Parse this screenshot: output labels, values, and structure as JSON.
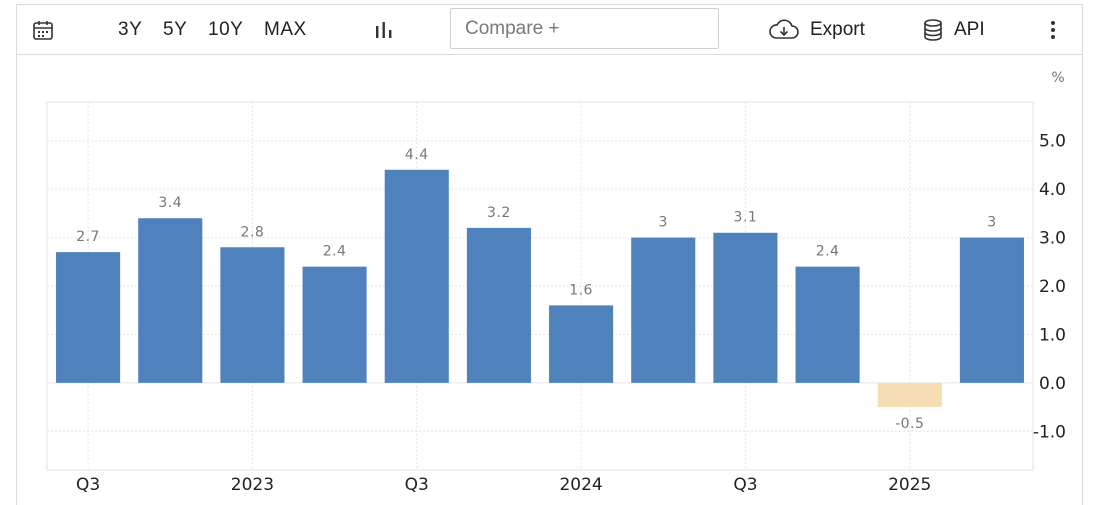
{
  "toolbar": {
    "icons": {
      "calendar": "calendar-icon",
      "chart_type": "bar-chart-icon",
      "export": "cloud-download-icon",
      "api": "database-icon",
      "more": "more-vertical-icon"
    },
    "ranges": [
      "3Y",
      "5Y",
      "10Y",
      "MAX"
    ],
    "compare_placeholder": "Compare +",
    "export_label": "Export",
    "api_label": "API"
  },
  "chart_data": {
    "type": "bar",
    "categories": [
      "2022 Q3",
      "2022 Q4",
      "2023 Q1",
      "2023 Q2",
      "2023 Q3",
      "2023 Q4",
      "2024 Q1",
      "2024 Q2",
      "2024 Q3",
      "2024 Q4",
      "2025 Q1",
      "2025 Q2"
    ],
    "values": [
      2.7,
      3.4,
      2.8,
      2.4,
      4.4,
      3.2,
      1.6,
      3,
      3.1,
      2.4,
      -0.5,
      3
    ],
    "value_labels": [
      "2.7",
      "3.4",
      "2.8",
      "2.4",
      "4.4",
      "3.2",
      "1.6",
      "3",
      "3.1",
      "2.4",
      "-0.5",
      "3"
    ],
    "x_tick_labels": [
      "Q3",
      "2023",
      "Q3",
      "2024",
      "Q3",
      "2025"
    ],
    "x_tick_after_bar": [
      0,
      2,
      4,
      6,
      8,
      10
    ],
    "y_ticks": [
      "5.0",
      "4.0",
      "3.0",
      "2.0",
      "1.0",
      "0.0",
      "-1.0"
    ],
    "y_tick_values": [
      5,
      4,
      3,
      2,
      1,
      0,
      -1
    ],
    "unit": "%",
    "ylim": [
      -1.8,
      5.8
    ],
    "grid": true,
    "y_axis_side": "right",
    "colors": {
      "positive": "#4f81bd",
      "negative": "#f5deb3",
      "grid": "#e6e6e6",
      "label": "#777777"
    }
  }
}
